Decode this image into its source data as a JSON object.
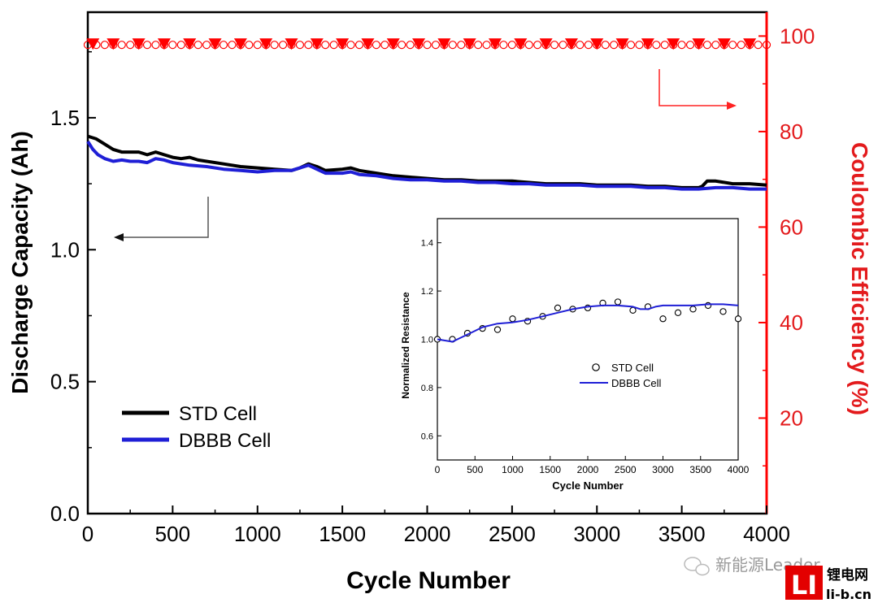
{
  "chart_data": [
    {
      "type": "line",
      "role": "main",
      "xlabel": "Cycle Number",
      "ylabel_left": "Discharge Capacity (Ah)",
      "ylabel_right": "Coulombic Efficiency (%)",
      "xlim": [
        0,
        4000
      ],
      "ylim_left": [
        0.0,
        1.9
      ],
      "ylim_right": [
        0,
        105
      ],
      "x_ticks": [
        "0",
        "500",
        "1000",
        "1500",
        "2000",
        "2500",
        "3000",
        "3500",
        "4000"
      ],
      "y_left_ticks": [
        "0.0",
        "0.5",
        "1.0",
        "1.5"
      ],
      "y_right_ticks": [
        "20",
        "40",
        "60",
        "80",
        "100"
      ],
      "legend": [
        "STD Cell",
        "DBBB Cell"
      ],
      "legend_position": "lower-left",
      "series": [
        {
          "name": "STD Cell",
          "axis": "left",
          "color": "#000000",
          "x": [
            0,
            50,
            100,
            150,
            200,
            300,
            350,
            400,
            450,
            500,
            550,
            600,
            650,
            700,
            800,
            900,
            1000,
            1100,
            1200,
            1250,
            1300,
            1350,
            1400,
            1500,
            1550,
            1600,
            1700,
            1800,
            1900,
            2000,
            2100,
            2200,
            2300,
            2400,
            2500,
            2600,
            2700,
            2800,
            2900,
            3000,
            3100,
            3200,
            3300,
            3400,
            3500,
            3600,
            3620,
            3650,
            3700,
            3800,
            3900,
            4000
          ],
          "y": [
            1.43,
            1.42,
            1.4,
            1.38,
            1.37,
            1.37,
            1.36,
            1.37,
            1.36,
            1.35,
            1.345,
            1.35,
            1.34,
            1.335,
            1.325,
            1.315,
            1.31,
            1.305,
            1.3,
            1.31,
            1.325,
            1.315,
            1.3,
            1.305,
            1.31,
            1.3,
            1.29,
            1.28,
            1.275,
            1.27,
            1.265,
            1.265,
            1.26,
            1.26,
            1.26,
            1.255,
            1.25,
            1.25,
            1.25,
            1.245,
            1.245,
            1.245,
            1.24,
            1.24,
            1.235,
            1.235,
            1.24,
            1.26,
            1.26,
            1.25,
            1.25,
            1.245
          ]
        },
        {
          "name": "DBBB Cell",
          "axis": "left",
          "color": "#1f1fd6",
          "x": [
            0,
            30,
            60,
            100,
            150,
            200,
            250,
            300,
            350,
            400,
            450,
            500,
            600,
            700,
            800,
            900,
            1000,
            1100,
            1200,
            1300,
            1350,
            1400,
            1500,
            1550,
            1600,
            1700,
            1800,
            1900,
            2000,
            2100,
            2200,
            2300,
            2400,
            2500,
            2600,
            2700,
            2800,
            2900,
            3000,
            3100,
            3200,
            3300,
            3400,
            3500,
            3600,
            3700,
            3800,
            3900,
            4000
          ],
          "y": [
            1.41,
            1.38,
            1.36,
            1.345,
            1.335,
            1.34,
            1.335,
            1.335,
            1.33,
            1.345,
            1.34,
            1.33,
            1.32,
            1.315,
            1.305,
            1.3,
            1.295,
            1.3,
            1.3,
            1.32,
            1.305,
            1.29,
            1.29,
            1.295,
            1.285,
            1.28,
            1.27,
            1.265,
            1.265,
            1.26,
            1.26,
            1.255,
            1.255,
            1.25,
            1.25,
            1.245,
            1.245,
            1.245,
            1.24,
            1.24,
            1.24,
            1.235,
            1.235,
            1.23,
            1.23,
            1.235,
            1.235,
            1.23,
            1.23
          ]
        },
        {
          "name": "STD Cell CE",
          "axis": "right",
          "marker": "open-circle",
          "color": "#ff0000",
          "x": [
            0,
            50,
            100,
            150,
            200,
            250,
            300,
            350,
            400,
            450,
            500,
            550,
            600,
            650,
            700,
            750,
            800,
            850,
            900,
            950,
            1000,
            1050,
            1100,
            1150,
            1200,
            1250,
            1300,
            1350,
            1400,
            1450,
            1500,
            1550,
            1600,
            1650,
            1700,
            1750,
            1800,
            1850,
            1900,
            1950,
            2000,
            2050,
            2100,
            2150,
            2200,
            2250,
            2300,
            2350,
            2400,
            2450,
            2500,
            2550,
            2600,
            2650,
            2700,
            2750,
            2800,
            2850,
            2900,
            2950,
            3000,
            3050,
            3100,
            3150,
            3200,
            3250,
            3300,
            3350,
            3400,
            3450,
            3500,
            3550,
            3600,
            3650,
            3700,
            3750,
            3800,
            3850,
            3900,
            3950,
            4000
          ],
          "y": [
            98.5,
            98.5,
            98.5,
            98.5,
            98.5,
            98.5,
            98.5,
            98.5,
            98.5,
            98.5,
            98.5,
            98.5,
            98.5,
            98.5,
            98.5,
            98.5,
            98.5,
            98.5,
            98.5,
            98.5,
            98.5,
            98.5,
            98.5,
            98.5,
            98.5,
            98.5,
            98.5,
            98.5,
            98.5,
            98.5,
            98.5,
            98.5,
            98.5,
            98.5,
            98.5,
            98.5,
            98.5,
            98.5,
            98.5,
            98.5,
            98.5,
            98.5,
            98.5,
            98.5,
            98.5,
            98.5,
            98.5,
            98.5,
            98.5,
            98.5,
            98.5,
            98.5,
            98.5,
            98.5,
            98.5,
            98.5,
            98.5,
            98.5,
            98.5,
            98.5,
            98.5,
            98.5,
            98.5,
            98.5,
            98.5,
            98.5,
            98.5,
            98.5,
            98.5,
            98.5,
            98.5,
            98.5,
            98.5,
            98.5,
            98.5,
            98.5,
            98.5,
            98.5,
            98.5,
            98.5,
            98.5
          ]
        },
        {
          "name": "DBBB Cell CE",
          "axis": "right",
          "marker": "filled-down-triangle",
          "color": "#ff0000",
          "x": [
            30,
            150,
            300,
            450,
            600,
            750,
            900,
            1050,
            1200,
            1350,
            1500,
            1650,
            1800,
            1950,
            2100,
            2250,
            2400,
            2550,
            2700,
            2850,
            3000,
            3150,
            3300,
            3450,
            3600,
            3750,
            3900
          ],
          "y": [
            98.5,
            98.5,
            98.5,
            98.5,
            98.5,
            98.5,
            98.5,
            98.5,
            98.5,
            98.5,
            98.5,
            98.5,
            98.5,
            98.5,
            98.5,
            98.5,
            98.5,
            98.5,
            98.5,
            98.5,
            98.5,
            98.5,
            98.5,
            98.5,
            98.5,
            98.5,
            98.5
          ]
        }
      ],
      "annotations": [
        "arrow to left axis",
        "arrow to right axis"
      ]
    },
    {
      "type": "line",
      "role": "inset",
      "xlabel": "Cycle Number",
      "ylabel": "Normalized Resistance",
      "xlim": [
        0,
        4000
      ],
      "ylim": [
        0.5,
        1.5
      ],
      "x_ticks": [
        "0",
        "500",
        "1000",
        "1500",
        "2000",
        "2500",
        "3000",
        "3500",
        "4000"
      ],
      "y_ticks": [
        "0.6",
        "0.8",
        "1.0",
        "1.2",
        "1.4"
      ],
      "legend": [
        "STD Cell",
        "DBBB Cell"
      ],
      "legend_position": "center",
      "series": [
        {
          "name": "STD Cell",
          "marker": "open-circle",
          "color": "#000000",
          "x": [
            0,
            200,
            400,
            600,
            800,
            1000,
            1200,
            1400,
            1600,
            1800,
            2000,
            2200,
            2400,
            2600,
            2800,
            3000,
            3200,
            3400,
            3600,
            3800,
            4000
          ],
          "y": [
            1.0,
            1.0,
            1.025,
            1.045,
            1.04,
            1.085,
            1.075,
            1.095,
            1.13,
            1.125,
            1.13,
            1.15,
            1.155,
            1.12,
            1.135,
            1.085,
            1.11,
            1.125,
            1.14,
            1.115,
            1.085
          ]
        },
        {
          "name": "DBBB Cell",
          "line": true,
          "color": "#1f1fd6",
          "x": [
            0,
            100,
            200,
            300,
            400,
            500,
            600,
            800,
            1000,
            1200,
            1400,
            1600,
            1800,
            2000,
            2200,
            2400,
            2600,
            2700,
            2800,
            2900,
            3000,
            3200,
            3400,
            3600,
            3800,
            4000
          ],
          "y": [
            1.0,
            0.995,
            0.99,
            1.005,
            1.02,
            1.035,
            1.05,
            1.065,
            1.07,
            1.08,
            1.095,
            1.11,
            1.125,
            1.135,
            1.14,
            1.14,
            1.135,
            1.125,
            1.125,
            1.135,
            1.14,
            1.14,
            1.14,
            1.145,
            1.145,
            1.14
          ]
        }
      ]
    }
  ],
  "watermark": {
    "wechat_text": "新能源Leader",
    "logo_letters": "LI",
    "logo_cn": "锂电网",
    "logo_url": "li-b.cn"
  }
}
